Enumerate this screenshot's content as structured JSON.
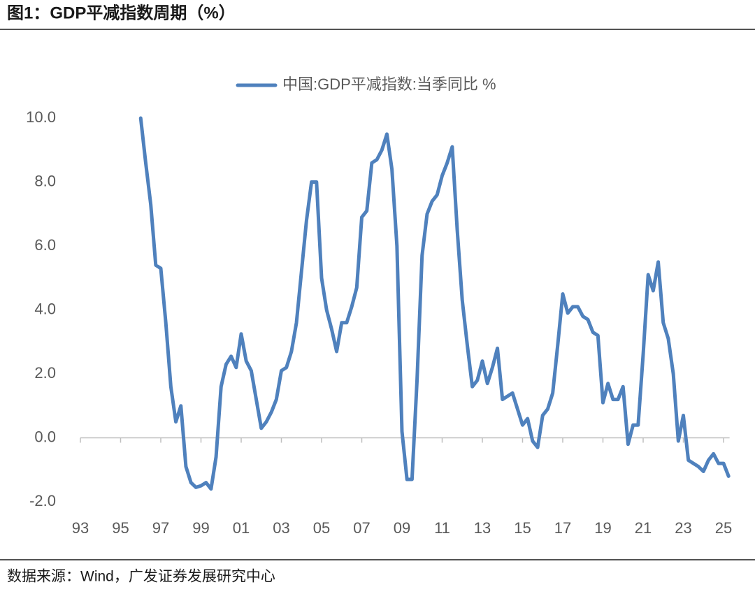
{
  "chart_data": {
    "type": "line",
    "title": "图1：GDP平减指数周期（%）",
    "source": "数据来源：Wind，广发证券发展研究中心",
    "xlim": [
      1993,
      2025.3
    ],
    "xticks": [
      {
        "value": 1993,
        "label": "93"
      },
      {
        "value": 1995,
        "label": "95"
      },
      {
        "value": 1997,
        "label": "97"
      },
      {
        "value": 1999,
        "label": "99"
      },
      {
        "value": 2001,
        "label": "01"
      },
      {
        "value": 2003,
        "label": "03"
      },
      {
        "value": 2005,
        "label": "05"
      },
      {
        "value": 2007,
        "label": "07"
      },
      {
        "value": 2009,
        "label": "09"
      },
      {
        "value": 2011,
        "label": "11"
      },
      {
        "value": 2013,
        "label": "13"
      },
      {
        "value": 2015,
        "label": "15"
      },
      {
        "value": 2017,
        "label": "17"
      },
      {
        "value": 2019,
        "label": "19"
      },
      {
        "value": 2021,
        "label": "21"
      },
      {
        "value": 2023,
        "label": "23"
      },
      {
        "value": 2025,
        "label": "25"
      }
    ],
    "ylim": [
      -2,
      10
    ],
    "yticks": [
      {
        "value": -2,
        "label": "-2.0"
      },
      {
        "value": 0,
        "label": "0.0"
      },
      {
        "value": 2,
        "label": "2.0"
      },
      {
        "value": 4,
        "label": "4.0"
      },
      {
        "value": 6,
        "label": "6.0"
      },
      {
        "value": 8,
        "label": "8.0"
      },
      {
        "value": 10,
        "label": "10.0"
      }
    ],
    "grid": false,
    "legend": "top",
    "x": [
      1996,
      1996.25,
      1996.5,
      1996.75,
      1997,
      1997.25,
      1997.5,
      1997.75,
      1998,
      1998.25,
      1998.5,
      1998.75,
      1999,
      1999.25,
      1999.5,
      1999.75,
      2000,
      2000.25,
      2000.5,
      2000.75,
      2001,
      2001.25,
      2001.5,
      2001.75,
      2002,
      2002.25,
      2002.5,
      2002.75,
      2003,
      2003.25,
      2003.5,
      2003.75,
      2004,
      2004.25,
      2004.5,
      2004.75,
      2005,
      2005.25,
      2005.5,
      2005.75,
      2006,
      2006.25,
      2006.5,
      2006.75,
      2007,
      2007.25,
      2007.5,
      2007.75,
      2008,
      2008.25,
      2008.5,
      2008.75,
      2009,
      2009.25,
      2009.5,
      2009.75,
      2010,
      2010.25,
      2010.5,
      2010.75,
      2011,
      2011.25,
      2011.5,
      2011.75,
      2012,
      2012.25,
      2012.5,
      2012.75,
      2013,
      2013.25,
      2013.5,
      2013.75,
      2014,
      2014.25,
      2014.5,
      2014.75,
      2015,
      2015.25,
      2015.5,
      2015.75,
      2016,
      2016.25,
      2016.5,
      2016.75,
      2017,
      2017.25,
      2017.5,
      2017.75,
      2018,
      2018.25,
      2018.5,
      2018.75,
      2019,
      2019.25,
      2019.5,
      2019.75,
      2020,
      2020.25,
      2020.5,
      2020.75,
      2021,
      2021.25,
      2021.5,
      2021.75,
      2022,
      2022.25,
      2022.5,
      2022.75,
      2023,
      2023.25,
      2023.5,
      2023.75,
      2024,
      2024.25,
      2024.5,
      2024.75,
      2025,
      2025.25
    ],
    "series": [
      {
        "name": "中国:GDP平减指数:当季同比 %",
        "color": "#4f81bd",
        "values": [
          10.0,
          8.6,
          7.3,
          5.4,
          5.3,
          3.6,
          1.6,
          0.5,
          1.0,
          -0.9,
          -1.4,
          -1.55,
          -1.5,
          -1.4,
          -1.6,
          -0.6,
          1.6,
          2.3,
          2.55,
          2.2,
          3.25,
          2.4,
          2.1,
          1.2,
          0.3,
          0.5,
          0.8,
          1.2,
          2.1,
          2.2,
          2.7,
          3.6,
          5.2,
          6.8,
          8.0,
          8.0,
          5.0,
          4.0,
          3.4,
          2.7,
          3.6,
          3.6,
          4.1,
          4.7,
          6.9,
          7.1,
          8.6,
          8.7,
          9.0,
          9.5,
          8.4,
          6.0,
          0.2,
          -1.3,
          -1.3,
          1.8,
          5.7,
          7.0,
          7.4,
          7.6,
          8.2,
          8.6,
          9.1,
          6.5,
          4.3,
          2.9,
          1.6,
          1.8,
          2.4,
          1.7,
          2.2,
          2.8,
          1.2,
          1.3,
          1.4,
          0.9,
          0.4,
          0.6,
          -0.1,
          -0.3,
          0.7,
          0.9,
          1.4,
          2.9,
          4.5,
          3.9,
          4.1,
          4.1,
          3.8,
          3.7,
          3.3,
          3.2,
          1.1,
          1.7,
          1.2,
          1.2,
          1.6,
          -0.2,
          0.4,
          0.4,
          2.6,
          5.1,
          4.6,
          5.5,
          3.6,
          3.1,
          2.0,
          -0.1,
          0.7,
          -0.7,
          -0.8,
          -0.9,
          -1.05,
          -0.7,
          -0.5,
          -0.8,
          -0.8,
          -1.2
        ]
      }
    ]
  }
}
